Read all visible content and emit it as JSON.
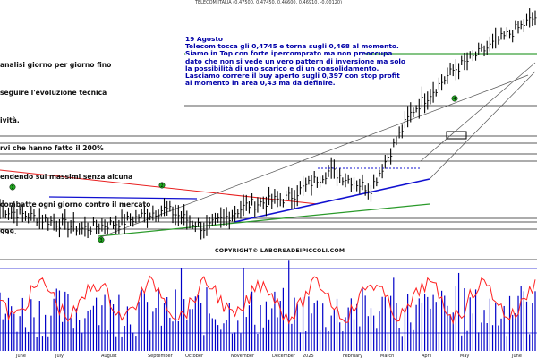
{
  "header": "TELECOM ITALIA (0,47500, 0,47450, 0,46600, 0,46910, -0,00120)",
  "note_left": {
    "lines": [
      "analisi giorno per giorno fino",
      "seguire l'evoluzione tecnica",
      "ività.",
      "rvi che hanno fatto il 200%",
      "endendo sui massimi senza alcuna",
      "combatte ogni giorno contro il mercato",
      "999."
    ]
  },
  "note_right": {
    "lines": [
      "19 Agosto",
      "Telecom tocca gli 0,4745 e torna sugli 0,468 al momento.",
      "Siamo in Top con forte ipercomprato ma non preoccupa",
      "dato che non si vede un vero pattern di inversione ma solo",
      "la possibilità di uno scarico e di un consolidamento.",
      "Lasciamo correre il buy aperto sugli 0,397 con stop profit",
      "al momento in area 0,43 ma da definire."
    ]
  },
  "copyright": "COPYRIGHT© LABORSADEIPICCOLI.COM",
  "chart_data": {
    "type": "line",
    "title": "TELECOM ITALIA (0,47500, 0,47450, 0,46600, 0,46910, -0,00120)",
    "x_axis_labels": [
      "June",
      "July",
      "August",
      "September",
      "October",
      "November",
      "December",
      "2025",
      "February",
      "March",
      "April",
      "May",
      "June"
    ],
    "price_series": [
      {
        "month": "June",
        "price": 0.258
      },
      {
        "month": "July",
        "price": 0.247
      },
      {
        "month": "August",
        "price": 0.236
      },
      {
        "month": "September",
        "price": 0.244
      },
      {
        "month": "October",
        "price": 0.258
      },
      {
        "month": "November",
        "price": 0.236
      },
      {
        "month": "December",
        "price": 0.262
      },
      {
        "month": "2025",
        "price": 0.27
      },
      {
        "month": "February",
        "price": 0.3
      },
      {
        "month": "March",
        "price": 0.28
      },
      {
        "month": "April",
        "price": 0.365
      },
      {
        "month": "May",
        "price": 0.41
      },
      {
        "month": "June",
        "price": 0.44
      },
      {
        "month": "August",
        "price": 0.469
      }
    ],
    "markers": [
      "1",
      "2",
      "3",
      "4"
    ],
    "ylim": [
      0.22,
      0.48
    ],
    "volume_note": "Volume bars (blue) with oscillator line (red) in lower pane"
  },
  "colors": {
    "price": "#000000",
    "volume": "#0000c8",
    "oscillator": "#ff2020",
    "red_trend": "#e82020",
    "blue_trend": "#1010d0",
    "green_trend": "#2a9a2a",
    "green_marker": "#22aa22",
    "horizontal_green": "#0a8a0a"
  }
}
